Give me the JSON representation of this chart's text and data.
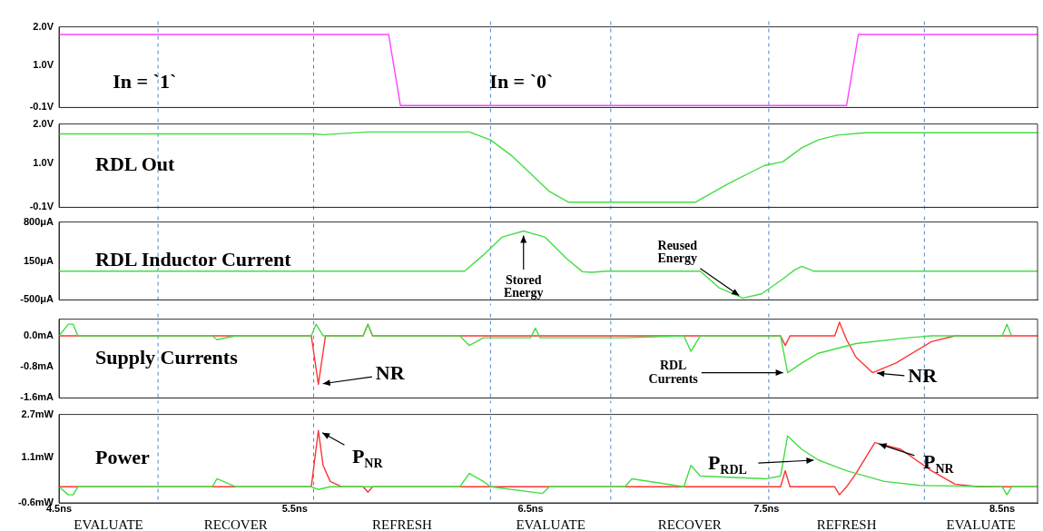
{
  "chart_data": [
    {
      "type": "line",
      "xlim": [
        4.5,
        8.65
      ],
      "ylim": [
        -0.1,
        2.0
      ],
      "yticks": [
        {
          "value": 2.0,
          "label": "2.0V"
        },
        {
          "value": 1.0,
          "label": "1.0V"
        },
        {
          "value": -0.1,
          "label": "-0.1V"
        }
      ],
      "tick_labels": "y",
      "series": [
        {
          "color": "#ff44ff",
          "x": [
            4.5,
            5.898,
            5.948,
            7.84,
            7.89,
            8.65
          ],
          "values": [
            1.8,
            1.8,
            -0.05,
            -0.05,
            1.8,
            1.8
          ]
        }
      ],
      "ref_lines": [
        {
          "axis": "x",
          "value": 4.92,
          "color": "#4a86c8",
          "line_style": "dashed"
        },
        {
          "axis": "x",
          "value": 5.58,
          "color": "#4a86c8",
          "line_style": "dashed"
        },
        {
          "axis": "x",
          "value": 6.33,
          "color": "#4a86c8",
          "line_style": "dashed"
        },
        {
          "axis": "x",
          "value": 6.84,
          "color": "#4a86c8",
          "line_style": "dashed"
        },
        {
          "axis": "x",
          "value": 7.51,
          "color": "#4a86c8",
          "line_style": "dashed"
        },
        {
          "axis": "x",
          "value": 8.17,
          "color": "#4a86c8",
          "line_style": "dashed"
        }
      ],
      "annotations": [
        "In = `1`",
        "In = `0`"
      ]
    },
    {
      "type": "line",
      "title": "RDL Out",
      "xlim": [
        4.5,
        8.65
      ],
      "ylim": [
        -0.1,
        2.0
      ],
      "yticks": [
        {
          "value": 2.0,
          "label": "2.0V"
        },
        {
          "value": 1.0,
          "label": "1.0V"
        },
        {
          "value": -0.1,
          "label": "-0.1V"
        }
      ],
      "tick_labels": "y",
      "series": [
        {
          "color": "#44dd44",
          "x": [
            4.5,
            5.58,
            5.62,
            5.81,
            6.24,
            6.33,
            6.42,
            6.5,
            6.58,
            6.66,
            7.2,
            7.34,
            7.49,
            7.57,
            7.65,
            7.72,
            7.8,
            7.92,
            8.65
          ],
          "values": [
            1.75,
            1.75,
            1.73,
            1.8,
            1.8,
            1.6,
            1.2,
            0.75,
            0.3,
            0.03,
            0.03,
            0.5,
            0.95,
            1.05,
            1.4,
            1.6,
            1.72,
            1.78,
            1.78
          ]
        }
      ],
      "ref_lines": [
        {
          "axis": "x",
          "value": 4.92,
          "color": "#4a86c8",
          "line_style": "dashed"
        },
        {
          "axis": "x",
          "value": 5.58,
          "color": "#4a86c8",
          "line_style": "dashed"
        },
        {
          "axis": "x",
          "value": 6.33,
          "color": "#4a86c8",
          "line_style": "dashed"
        },
        {
          "axis": "x",
          "value": 6.84,
          "color": "#4a86c8",
          "line_style": "dashed"
        },
        {
          "axis": "x",
          "value": 7.51,
          "color": "#4a86c8",
          "line_style": "dashed"
        },
        {
          "axis": "x",
          "value": 8.17,
          "color": "#4a86c8",
          "line_style": "dashed"
        }
      ]
    },
    {
      "type": "line",
      "title": "RDL Inductor Current",
      "xlim": [
        4.5,
        8.65
      ],
      "ylim": [
        -500,
        800
      ],
      "yticks": [
        {
          "value": 800,
          "label": "800μA"
        },
        {
          "value": 150,
          "label": "150μA"
        },
        {
          "value": -500,
          "label": "-500μA"
        }
      ],
      "tick_labels": "y",
      "series": [
        {
          "color": "#44dd44",
          "x": [
            4.5,
            6.22,
            6.3,
            6.38,
            6.47,
            6.56,
            6.65,
            6.72,
            6.76,
            6.82,
            7.22,
            7.3,
            7.4,
            7.48,
            7.57,
            7.62,
            7.65,
            7.7,
            8.65
          ],
          "values": [
            -20,
            -20,
            250,
            550,
            650,
            550,
            200,
            -30,
            -40,
            -20,
            -20,
            -300,
            -470,
            -400,
            -150,
            0,
            60,
            -20,
            -20
          ]
        }
      ],
      "ref_lines": [
        {
          "axis": "x",
          "value": 4.92,
          "color": "#4a86c8",
          "line_style": "dashed"
        },
        {
          "axis": "x",
          "value": 5.58,
          "color": "#4a86c8",
          "line_style": "dashed"
        },
        {
          "axis": "x",
          "value": 6.33,
          "color": "#4a86c8",
          "line_style": "dashed"
        },
        {
          "axis": "x",
          "value": 6.84,
          "color": "#4a86c8",
          "line_style": "dashed"
        },
        {
          "axis": "x",
          "value": 7.51,
          "color": "#4a86c8",
          "line_style": "dashed"
        },
        {
          "axis": "x",
          "value": 8.17,
          "color": "#4a86c8",
          "line_style": "dashed"
        }
      ],
      "annotations": [
        {
          "text": "Stored Energy",
          "x": 6.47,
          "y": 650
        },
        {
          "text": "Reused Energy",
          "x": 7.4,
          "y": -470
        }
      ]
    },
    {
      "type": "line",
      "title": "Supply Currents",
      "xlim": [
        4.5,
        8.65
      ],
      "ylim": [
        -1.6,
        0.43
      ],
      "yticks": [
        {
          "value": 0,
          "label": "0.0mA"
        },
        {
          "value": -0.8,
          "label": "-0.8mA"
        },
        {
          "value": -1.6,
          "label": "-1.6mA"
        }
      ],
      "tick_labels": "y",
      "series": [
        {
          "color": "#44dd44",
          "x": [
            4.5,
            4.54,
            4.56,
            4.58,
            5.15,
            5.17,
            5.25,
            5.57,
            5.59,
            5.62,
            5.79,
            5.81,
            5.83,
            6.2,
            6.24,
            6.3,
            6.5,
            6.52,
            6.54,
            6.9,
            7.15,
            7.18,
            7.22,
            7.56,
            7.59,
            7.65,
            7.72,
            7.88,
            8.1,
            8.2,
            8.5,
            8.52,
            8.54
          ],
          "values": [
            0,
            0.3,
            0.3,
            0,
            0,
            -0.1,
            0,
            0,
            0.3,
            0,
            0,
            0.3,
            0,
            0,
            -0.25,
            -0.05,
            -0.05,
            0.2,
            -0.05,
            -0.05,
            0,
            -0.4,
            0,
            0,
            -0.95,
            -0.7,
            -0.45,
            -0.2,
            -0.05,
            0,
            0,
            0.3,
            0
          ]
        },
        {
          "color": "#ff3333",
          "x": [
            4.5,
            5.57,
            5.6,
            5.63,
            5.79,
            5.81,
            5.83,
            7.56,
            7.58,
            7.6,
            7.79,
            7.81,
            7.84,
            7.88,
            7.95,
            8.05,
            8.2,
            8.3,
            8.65
          ],
          "values": [
            0,
            0,
            -1.25,
            0,
            0,
            0.3,
            0,
            0,
            -0.25,
            0,
            0,
            0.35,
            -0.1,
            -0.55,
            -0.95,
            -0.7,
            -0.15,
            0,
            0
          ]
        }
      ],
      "ref_lines": [
        {
          "axis": "x",
          "value": 4.92,
          "color": "#4a86c8",
          "line_style": "dashed"
        },
        {
          "axis": "x",
          "value": 5.58,
          "color": "#4a86c8",
          "line_style": "dashed"
        },
        {
          "axis": "x",
          "value": 6.33,
          "color": "#4a86c8",
          "line_style": "dashed"
        },
        {
          "axis": "x",
          "value": 6.84,
          "color": "#4a86c8",
          "line_style": "dashed"
        },
        {
          "axis": "x",
          "value": 7.51,
          "color": "#4a86c8",
          "line_style": "dashed"
        },
        {
          "axis": "x",
          "value": 8.17,
          "color": "#4a86c8",
          "line_style": "dashed"
        }
      ],
      "annotations": [
        {
          "text": "NR",
          "x": 5.6,
          "y": -1.25
        },
        {
          "text": "RDL Currents",
          "x": 7.59,
          "y": -0.95
        },
        {
          "text": "NR",
          "x": 7.95,
          "y": -0.95
        }
      ]
    },
    {
      "type": "line",
      "title": "Power",
      "xlim": [
        4.5,
        8.65
      ],
      "xticks": [
        {
          "value": 4.5,
          "label": "4.5ns"
        },
        {
          "value": 5.5,
          "label": "5.5ns"
        },
        {
          "value": 6.5,
          "label": "6.5ns"
        },
        {
          "value": 7.5,
          "label": "7.5ns"
        },
        {
          "value": 8.5,
          "label": "8.5ns"
        }
      ],
      "ylim": [
        -0.6,
        2.7
      ],
      "yticks": [
        {
          "value": 2.7,
          "label": "2.7mW"
        },
        {
          "value": 1.1,
          "label": "1.1mW"
        },
        {
          "value": -0.6,
          "label": "-0.6mW"
        }
      ],
      "series": [
        {
          "color": "#44dd44",
          "x": [
            4.5,
            4.54,
            4.56,
            4.58,
            5.15,
            5.17,
            5.25,
            5.57,
            5.6,
            5.65,
            6.2,
            6.24,
            6.3,
            6.33,
            6.55,
            6.58,
            6.9,
            6.93,
            7.15,
            7.18,
            7.22,
            7.5,
            7.56,
            7.59,
            7.65,
            7.72,
            7.84,
            8.0,
            8.15,
            8.5,
            8.52,
            8.54,
            8.65
          ],
          "values": [
            0,
            -0.3,
            -0.3,
            0,
            0,
            0.3,
            0,
            0,
            -0.1,
            0,
            0,
            0.5,
            0.2,
            0,
            -0.25,
            0,
            0,
            0.3,
            0,
            0.8,
            0.4,
            0.3,
            0.4,
            1.9,
            1.4,
            1.0,
            0.6,
            0.2,
            0.05,
            0,
            -0.3,
            0,
            0
          ]
        },
        {
          "color": "#ff3333",
          "x": [
            4.5,
            5.57,
            5.6,
            5.62,
            5.65,
            5.7,
            5.79,
            5.81,
            5.83,
            7.56,
            7.58,
            7.6,
            7.79,
            7.81,
            7.84,
            7.88,
            7.96,
            8.07,
            8.2,
            8.3,
            8.4,
            8.65
          ],
          "values": [
            0,
            0,
            2.1,
            0.8,
            0.2,
            0,
            0,
            -0.2,
            0,
            0,
            0.6,
            0,
            0,
            -0.3,
            0,
            0.5,
            1.65,
            1.4,
            0.6,
            0.1,
            0,
            0
          ]
        }
      ],
      "ref_lines": [
        {
          "axis": "x",
          "value": 4.92,
          "color": "#4a86c8",
          "line_style": "dashed"
        },
        {
          "axis": "x",
          "value": 5.58,
          "color": "#4a86c8",
          "line_style": "dashed"
        },
        {
          "axis": "x",
          "value": 6.33,
          "color": "#4a86c8",
          "line_style": "dashed"
        },
        {
          "axis": "x",
          "value": 6.84,
          "color": "#4a86c8",
          "line_style": "dashed"
        },
        {
          "axis": "x",
          "value": 7.51,
          "color": "#4a86c8",
          "line_style": "dashed"
        },
        {
          "axis": "x",
          "value": 8.17,
          "color": "#4a86c8",
          "line_style": "dashed"
        }
      ],
      "annotations": [
        {
          "text": "P$_{NR}$",
          "x": 5.6,
          "y": 2.1
        },
        {
          "text": "P$_{RDL}$",
          "x": 7.72,
          "y": 1.0
        },
        {
          "text": "P$_{NR}$",
          "x": 7.96,
          "y": 1.65
        },
        "EVALUATE",
        "RECOVER",
        "REFRESH",
        "EVALUATE",
        "RECOVER",
        "REFRESH",
        "EVALUATE"
      ]
    }
  ]
}
